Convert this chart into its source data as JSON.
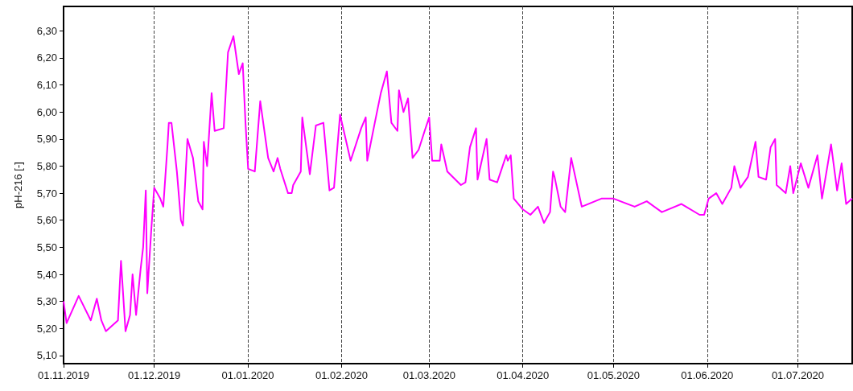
{
  "chart_data": {
    "type": "line",
    "ylabel": "pH-216 [-]",
    "grid": "x",
    "marker": "none",
    "line_style": "solid",
    "xlim": [
      "2019-11-01",
      "2020-07-19"
    ],
    "xticks": [
      {
        "value": "2019-11-01",
        "label": "01.11.2019"
      },
      {
        "value": "2019-12-01",
        "label": "01.12.2019"
      },
      {
        "value": "2020-01-01",
        "label": "01.01.2020"
      },
      {
        "value": "2020-02-01",
        "label": "01.02.2020"
      },
      {
        "value": "2020-03-01",
        "label": "01.03.2020"
      },
      {
        "value": "2020-04-01",
        "label": "01.04.2020"
      },
      {
        "value": "2020-05-01",
        "label": "01.05.2020"
      },
      {
        "value": "2020-06-01",
        "label": "01.06.2020"
      },
      {
        "value": "2020-07-01",
        "label": "01.07.2020"
      }
    ],
    "ylim": [
      5.07,
      6.39
    ],
    "yticks": [
      {
        "value": 5.1,
        "label": "5,10"
      },
      {
        "value": 5.2,
        "label": "5,20"
      },
      {
        "value": 5.3,
        "label": "5,30"
      },
      {
        "value": 5.4,
        "label": "5,40"
      },
      {
        "value": 5.5,
        "label": "5,50"
      },
      {
        "value": 5.6,
        "label": "5,60"
      },
      {
        "value": 5.7,
        "label": "5,70"
      },
      {
        "value": 5.8,
        "label": "5,80"
      },
      {
        "value": 5.9,
        "label": "5,90"
      },
      {
        "value": 6.0,
        "label": "6,00"
      },
      {
        "value": 6.1,
        "label": "6,10"
      },
      {
        "value": 6.2,
        "label": "6,20"
      },
      {
        "value": 6.3,
        "label": "6,30"
      }
    ],
    "x": [
      "2019-11-01",
      "2019-11-02",
      "2019-11-06",
      "2019-11-10",
      "2019-11-12",
      "2019-11-13T12:00",
      "2019-11-15",
      "2019-11-19",
      "2019-11-20",
      "2019-11-21T12:00",
      "2019-11-23",
      "2019-11-23T20:00",
      "2019-11-25",
      "2019-11-26T12:00",
      "2019-11-27T08:00",
      "2019-11-28T05:00",
      "2019-11-28T17:00",
      "2019-11-30",
      "2019-12-01",
      "2019-12-03",
      "2019-12-04",
      "2019-12-05T10:00",
      "2019-12-05T20:00",
      "2019-12-06T17:00",
      "2019-12-08T12:00",
      "2019-12-09T20:00",
      "2019-12-10T12:00",
      "2019-12-12",
      "2019-12-13T20:00",
      "2019-12-15T14:00",
      "2019-12-17",
      "2019-12-17T10:00",
      "2019-12-18T12:00",
      "2019-12-20",
      "2019-12-21",
      "2019-12-24",
      "2019-12-25T10:00",
      "2019-12-27T05:00",
      "2019-12-29",
      "2019-12-30T07:00",
      "2019-12-31T05:00",
      "2020-01-01T02:00",
      "2020-01-03T07:00",
      "2020-01-05T02:00",
      "2020-01-07T17:00",
      "2020-01-09T12:00",
      "2020-01-10T20:00",
      "2020-01-11T17:00",
      "2020-01-14T07:00",
      "2020-01-15T12:00",
      "2020-01-16",
      "2020-01-18T12:00",
      "2020-01-19",
      "2020-01-21T12:00",
      "2020-01-23T12:00",
      "2020-01-26",
      "2020-01-28",
      "2020-01-29T12:00",
      "2020-01-31T12:00",
      "2020-02-04",
      "2020-02-07T12:00",
      "2020-02-09",
      "2020-02-09T12:00",
      "2020-02-12",
      "2020-02-14",
      "2020-02-16",
      "2020-02-17T12:00",
      "2020-02-19T12:00",
      "2020-02-20",
      "2020-02-21T12:00",
      "2020-02-23",
      "2020-02-24T12:00",
      "2020-02-26T12:00",
      "2020-02-28T12:00",
      "2020-03-01",
      "2020-03-02",
      "2020-03-04T12:00",
      "2020-03-05",
      "2020-03-07",
      "2020-03-11T12:00",
      "2020-03-13",
      "2020-03-14T12:00",
      "2020-03-16T12:00",
      "2020-03-17",
      "2020-03-20",
      "2020-03-21",
      "2020-03-23T12:00",
      "2020-03-25",
      "2020-03-26T12:00",
      "2020-03-27",
      "2020-03-28",
      "2020-03-29",
      "2020-04-01",
      "2020-04-03T12:00",
      "2020-04-06",
      "2020-04-08",
      "2020-04-10",
      "2020-04-11",
      "2020-04-11T12:00",
      "2020-04-13T12:00",
      "2020-04-15",
      "2020-04-17",
      "2020-04-20T12:00",
      "2020-04-27",
      "2020-05-01",
      "2020-05-08",
      "2020-05-12",
      "2020-05-17",
      "2020-05-23T12:00",
      "2020-05-29T12:00",
      "2020-05-31",
      "2020-06-01T12:00",
      "2020-06-04",
      "2020-06-06",
      "2020-06-09",
      "2020-06-10",
      "2020-06-12",
      "2020-06-14T12:00",
      "2020-06-17",
      "2020-06-18",
      "2020-06-20T12:00",
      "2020-06-22",
      "2020-06-23T12:00",
      "2020-06-24",
      "2020-06-27",
      "2020-06-28T12:00",
      "2020-06-29T12:00",
      "2020-07-02",
      "2020-07-04T12:00",
      "2020-07-07T12:00",
      "2020-07-09",
      "2020-07-12",
      "2020-07-14",
      "2020-07-15T12:00",
      "2020-07-17",
      "2020-07-19"
    ],
    "series": [
      {
        "color": "#ff00ff",
        "values": [
          5.3,
          5.22,
          5.32,
          5.23,
          5.31,
          5.23,
          5.19,
          5.23,
          5.45,
          5.19,
          5.25,
          5.4,
          5.25,
          5.42,
          5.5,
          5.71,
          5.33,
          5.56,
          5.72,
          5.68,
          5.65,
          5.88,
          5.96,
          5.96,
          5.78,
          5.6,
          5.58,
          5.9,
          5.83,
          5.67,
          5.64,
          5.89,
          5.8,
          6.07,
          5.93,
          5.94,
          6.22,
          6.28,
          6.14,
          6.18,
          5.96,
          5.79,
          5.78,
          6.04,
          5.83,
          5.78,
          5.83,
          5.79,
          5.7,
          5.7,
          5.73,
          5.78,
          5.98,
          5.77,
          5.95,
          5.96,
          5.71,
          5.72,
          5.99,
          5.82,
          5.94,
          5.98,
          5.82,
          5.96,
          6.07,
          6.15,
          5.96,
          5.93,
          6.08,
          6.0,
          6.05,
          5.83,
          5.86,
          5.93,
          5.98,
          5.82,
          5.82,
          5.88,
          5.78,
          5.73,
          5.74,
          5.87,
          5.94,
          5.75,
          5.9,
          5.75,
          5.74,
          5.79,
          5.84,
          5.82,
          5.84,
          5.68,
          5.64,
          5.62,
          5.65,
          5.59,
          5.63,
          5.78,
          5.76,
          5.65,
          5.63,
          5.83,
          5.65,
          5.68,
          5.68,
          5.65,
          5.67,
          5.63,
          5.66,
          5.62,
          5.62,
          5.68,
          5.7,
          5.66,
          5.72,
          5.8,
          5.72,
          5.76,
          5.89,
          5.76,
          5.75,
          5.87,
          5.9,
          5.73,
          5.7,
          5.8,
          5.7,
          5.81,
          5.72,
          5.84,
          5.68,
          5.88,
          5.71,
          5.81,
          5.66,
          5.68
        ]
      }
    ]
  }
}
